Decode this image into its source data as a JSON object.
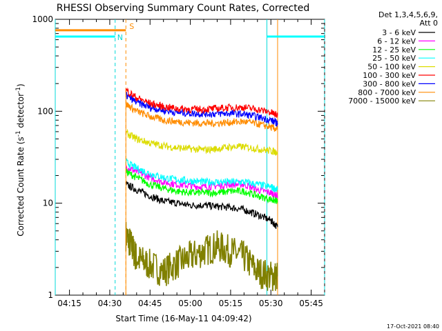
{
  "chart_data": {
    "type": "line",
    "title": "RHESSI Observing Summary Count Rates, Corrected",
    "xlabel": "Start Time (16-May-11 04:09:42)",
    "ylabel_main": "Corrected Count Rate (s",
    "ylabel_sup1": "-1",
    "ylabel_mid": " detector",
    "ylabel_sup2": "-1",
    "ylabel_end": ")",
    "yscale": "log",
    "ylim": [
      1,
      1000
    ],
    "xlim_minutes": [
      249.7,
      350.0
    ],
    "x_ticks": [
      {
        "t": 255,
        "label": "04:15"
      },
      {
        "t": 270,
        "label": "04:30"
      },
      {
        "t": 285,
        "label": "04:45"
      },
      {
        "t": 300,
        "label": "05:00"
      },
      {
        "t": 315,
        "label": "05:15"
      },
      {
        "t": 330,
        "label": "05:30"
      },
      {
        "t": 345,
        "label": "05:45"
      }
    ],
    "y_ticks": [
      {
        "v": 1,
        "label": "1"
      },
      {
        "v": 10,
        "label": "10"
      },
      {
        "v": 100,
        "label": "100"
      },
      {
        "v": 1000,
        "label": "1000"
      }
    ],
    "legend_header": [
      "Det 1,3,4,5,6,9,",
      "Att 0"
    ],
    "legend_placement": "right",
    "series": [
      {
        "name": "3 - 6 keV",
        "color": "#000000",
        "x": [
          276.0,
          280,
          285,
          290,
          295,
          300,
          305,
          310,
          315,
          320,
          325,
          330,
          332.5
        ],
        "values": [
          16,
          14,
          12,
          10.5,
          10,
          9.5,
          9.5,
          9.2,
          9.0,
          8.5,
          7.5,
          6.5,
          5.5
        ]
      },
      {
        "name": "6 - 12 keV",
        "color": "#ff00ff",
        "x": [
          276.0,
          280,
          285,
          290,
          295,
          300,
          305,
          310,
          315,
          320,
          325,
          330,
          332.5
        ],
        "values": [
          25,
          22,
          19,
          17,
          16,
          15.5,
          15,
          15.5,
          16,
          16,
          14,
          13,
          12
        ]
      },
      {
        "name": "12 - 25 keV",
        "color": "#00ff00",
        "x": [
          276.0,
          280,
          285,
          290,
          295,
          300,
          305,
          310,
          315,
          320,
          325,
          330,
          332.5
        ],
        "values": [
          22,
          19,
          16,
          14.5,
          13.5,
          13,
          13,
          13,
          13.5,
          13.5,
          12,
          11,
          10.5
        ]
      },
      {
        "name": "25 - 50 keV",
        "color": "#00ffff",
        "x": [
          276.0,
          280,
          285,
          290,
          295,
          300,
          305,
          310,
          315,
          320,
          325,
          330,
          332.5
        ],
        "values": [
          28,
          24,
          21,
          19,
          18,
          17.5,
          17,
          17,
          17,
          17,
          16,
          15,
          14
        ]
      },
      {
        "name": "50 - 100 keV",
        "color": "#dcdc00",
        "x": [
          276.0,
          280,
          285,
          290,
          295,
          300,
          305,
          310,
          315,
          320,
          325,
          330,
          332.5
        ],
        "values": [
          58,
          50,
          45,
          42,
          40,
          39,
          38,
          39,
          41,
          41,
          39,
          37,
          36
        ]
      },
      {
        "name": "100 - 300 keV",
        "color": "#ff0000",
        "x": [
          276.0,
          280,
          285,
          290,
          295,
          300,
          305,
          310,
          315,
          320,
          325,
          330,
          332.5
        ],
        "values": [
          170,
          140,
          122,
          112,
          107,
          105,
          105,
          107,
          110,
          110,
          105,
          97,
          90
        ]
      },
      {
        "name": "300 - 800 keV",
        "color": "#0000ff",
        "x": [
          276.0,
          280,
          285,
          290,
          295,
          300,
          305,
          310,
          315,
          320,
          325,
          330,
          332.5
        ],
        "values": [
          150,
          125,
          110,
          102,
          97,
          95,
          94,
          94,
          95,
          93,
          87,
          80,
          74
        ]
      },
      {
        "name": "800 - 7000 keV",
        "color": "#ff8c00",
        "x": [
          276.0,
          280,
          285,
          290,
          295,
          300,
          305,
          310,
          315,
          320,
          325,
          330,
          332.5
        ],
        "values": [
          120,
          100,
          88,
          80,
          77,
          75,
          74,
          74,
          76,
          77,
          73,
          67,
          63
        ]
      },
      {
        "name": "7000 - 15000 keV",
        "color": "#808000",
        "x": [
          276.0,
          278,
          280,
          284,
          290,
          295,
          300,
          305,
          310,
          315,
          320,
          325,
          330,
          332.5
        ],
        "values": [
          4.5,
          3.5,
          2.5,
          2.2,
          1.8,
          2.2,
          2.6,
          3.0,
          3.4,
          3.0,
          2.6,
          1.8,
          1.6,
          1.6
        ]
      }
    ],
    "annotations": {
      "flag_labels": [
        {
          "text": "N",
          "color": "#00d8d8"
        },
        {
          "text": "S",
          "color": "#ff8c00"
        }
      ],
      "flag_levels": {
        "cyan": 650,
        "orange": 760
      },
      "cyan_flags_t": [
        [
          249.7,
          272.0
        ],
        [
          328.5,
          350.0
        ]
      ],
      "orange_flag_t": [
        249.7,
        276.0
      ],
      "vlines": [
        {
          "t": 249.7,
          "color": "#00d8d8",
          "style": "solid"
        },
        {
          "t": 272.0,
          "color": "#00d8d8",
          "style": "dashed"
        },
        {
          "t": 276.0,
          "color": "#ff8c00",
          "style": "dashed"
        },
        {
          "t": 328.5,
          "color": "#00d8d8",
          "style": "solid"
        },
        {
          "t": 332.5,
          "color": "#ff8c00",
          "style": "solid"
        },
        {
          "t": 350.0,
          "color": "#00d8d8",
          "style": "dashed"
        }
      ]
    },
    "footer_date": "17-Oct-2021 08:40"
  }
}
